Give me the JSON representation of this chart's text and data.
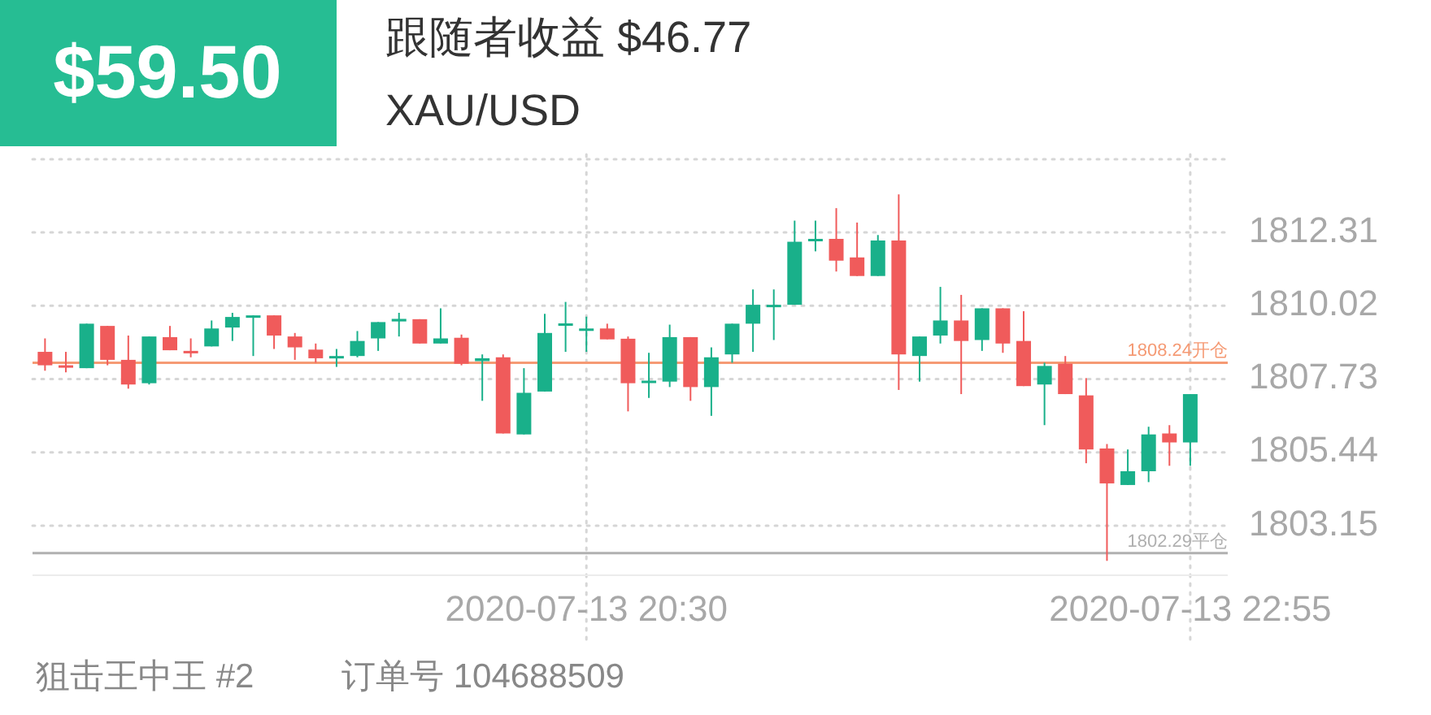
{
  "chart_data": {
    "type": "candlestick",
    "title": "XAU/USD",
    "subtitle": "跟随者收益 $46.77",
    "annotations": [
      "$59.50",
      "狙击王中王 #2",
      "订单号 104688509"
    ],
    "x": [
      "2020-07-13T18:20",
      "2020-07-13T18:25",
      "2020-07-13T18:30",
      "2020-07-13T18:35",
      "2020-07-13T18:40",
      "2020-07-13T18:45",
      "2020-07-13T18:50",
      "2020-07-13T18:55",
      "2020-07-13T19:00",
      "2020-07-13T19:05",
      "2020-07-13T19:10",
      "2020-07-13T19:15",
      "2020-07-13T19:20",
      "2020-07-13T19:25",
      "2020-07-13T19:30",
      "2020-07-13T19:35",
      "2020-07-13T19:40",
      "2020-07-13T19:45",
      "2020-07-13T19:50",
      "2020-07-13T19:55",
      "2020-07-13T20:00",
      "2020-07-13T20:05",
      "2020-07-13T20:10",
      "2020-07-13T20:15",
      "2020-07-13T20:20",
      "2020-07-13T20:25",
      "2020-07-13T20:30",
      "2020-07-13T20:35",
      "2020-07-13T20:40",
      "2020-07-13T20:45",
      "2020-07-13T20:50",
      "2020-07-13T20:55",
      "2020-07-13T21:00",
      "2020-07-13T21:05",
      "2020-07-13T21:10",
      "2020-07-13T21:15",
      "2020-07-13T21:20",
      "2020-07-13T21:25",
      "2020-07-13T21:30",
      "2020-07-13T21:35",
      "2020-07-13T21:40",
      "2020-07-13T21:45",
      "2020-07-13T21:50",
      "2020-07-13T21:55",
      "2020-07-13T22:00",
      "2020-07-13T22:05",
      "2020-07-13T22:10",
      "2020-07-13T22:15",
      "2020-07-13T22:20",
      "2020-07-13T22:25",
      "2020-07-13T22:30",
      "2020-07-13T22:35",
      "2020-07-13T22:40",
      "2020-07-13T22:45",
      "2020-07-13T22:50",
      "2020-07-13T22:55"
    ],
    "ohlc": [
      [
        1808.58,
        1809.0,
        1807.99,
        1808.16
      ],
      [
        1808.16,
        1808.58,
        1807.94,
        1808.09
      ],
      [
        1808.07,
        1809.46,
        1808.07,
        1809.46
      ],
      [
        1809.39,
        1809.39,
        1808.16,
        1808.33
      ],
      [
        1808.33,
        1809.09,
        1807.43,
        1807.56
      ],
      [
        1807.6,
        1809.06,
        1807.56,
        1809.06
      ],
      [
        1809.04,
        1809.39,
        1808.63,
        1808.63
      ],
      [
        1808.61,
        1809.0,
        1808.41,
        1808.55
      ],
      [
        1808.75,
        1809.56,
        1808.75,
        1809.31
      ],
      [
        1809.34,
        1809.8,
        1808.92,
        1809.67
      ],
      [
        1809.67,
        1809.72,
        1808.45,
        1809.72
      ],
      [
        1809.72,
        1809.72,
        1808.67,
        1809.09
      ],
      [
        1809.06,
        1809.17,
        1808.33,
        1808.72
      ],
      [
        1808.65,
        1808.84,
        1808.24,
        1808.38
      ],
      [
        1808.38,
        1808.67,
        1808.11,
        1808.45
      ],
      [
        1808.45,
        1809.23,
        1808.41,
        1808.92
      ],
      [
        1809.0,
        1809.51,
        1808.61,
        1809.51
      ],
      [
        1809.53,
        1809.8,
        1809.06,
        1809.61
      ],
      [
        1809.6,
        1809.6,
        1808.84,
        1808.84
      ],
      [
        1808.84,
        1809.94,
        1808.84,
        1809.0
      ],
      [
        1809.02,
        1809.12,
        1808.16,
        1808.21
      ],
      [
        1808.29,
        1808.5,
        1807.05,
        1808.38
      ],
      [
        1808.41,
        1808.5,
        1806.03,
        1806.03
      ],
      [
        1806.0,
        1808.07,
        1806.0,
        1807.3
      ],
      [
        1807.34,
        1809.77,
        1807.34,
        1809.17
      ],
      [
        1809.43,
        1810.14,
        1808.58,
        1809.47
      ],
      [
        1809.24,
        1809.68,
        1808.58,
        1809.31
      ],
      [
        1809.31,
        1809.46,
        1808.97,
        1808.97
      ],
      [
        1808.99,
        1809.06,
        1806.72,
        1807.6
      ],
      [
        1807.61,
        1808.55,
        1807.14,
        1807.68
      ],
      [
        1807.65,
        1809.43,
        1807.48,
        1809.04
      ],
      [
        1809.04,
        1809.04,
        1807.05,
        1807.48
      ],
      [
        1807.48,
        1808.72,
        1806.58,
        1808.41
      ],
      [
        1808.5,
        1809.46,
        1808.24,
        1809.46
      ],
      [
        1809.46,
        1810.53,
        1808.58,
        1810.05
      ],
      [
        1810.0,
        1810.53,
        1808.95,
        1810.05
      ],
      [
        1810.05,
        1812.68,
        1810.05,
        1812.02
      ],
      [
        1812.04,
        1812.68,
        1811.72,
        1812.11
      ],
      [
        1812.11,
        1813.07,
        1811.09,
        1811.43
      ],
      [
        1811.53,
        1812.62,
        1810.95,
        1810.95
      ],
      [
        1810.95,
        1812.23,
        1810.95,
        1812.06
      ],
      [
        1812.06,
        1813.5,
        1807.39,
        1808.5
      ],
      [
        1808.45,
        1809.06,
        1807.65,
        1809.06
      ],
      [
        1809.09,
        1810.61,
        1808.84,
        1809.56
      ],
      [
        1809.56,
        1810.36,
        1807.26,
        1808.92
      ],
      [
        1808.95,
        1809.94,
        1808.61,
        1809.94
      ],
      [
        1809.94,
        1809.94,
        1808.55,
        1808.84
      ],
      [
        1808.92,
        1809.85,
        1807.51,
        1807.51
      ],
      [
        1807.56,
        1808.24,
        1806.29,
        1808.14
      ],
      [
        1808.21,
        1808.45,
        1807.26,
        1807.26
      ],
      [
        1807.22,
        1807.76,
        1805.1,
        1805.53
      ],
      [
        1805.56,
        1805.7,
        1802.05,
        1804.47
      ],
      [
        1804.42,
        1805.53,
        1804.42,
        1804.85
      ],
      [
        1804.85,
        1806.24,
        1804.51,
        1806.0
      ],
      [
        1806.03,
        1806.29,
        1805.02,
        1805.75
      ],
      [
        1805.75,
        1807.26,
        1805.02,
        1807.26
      ]
    ],
    "colors": [
      "#f05b5b",
      "#f05b5b",
      "#19b08a",
      "#f05b5b",
      "#f05b5b",
      "#19b08a",
      "#f05b5b",
      "#f05b5b",
      "#19b08a",
      "#19b08a",
      "#19b08a",
      "#f05b5b",
      "#f05b5b",
      "#f05b5b",
      "#19b08a",
      "#19b08a",
      "#19b08a",
      "#19b08a",
      "#f05b5b",
      "#19b08a",
      "#f05b5b",
      "#19b08a",
      "#f05b5b",
      "#19b08a",
      "#19b08a",
      "#19b08a",
      "#19b08a",
      "#f05b5b",
      "#f05b5b",
      "#19b08a",
      "#19b08a",
      "#f05b5b",
      "#19b08a",
      "#19b08a",
      "#19b08a",
      "#19b08a",
      "#19b08a",
      "#19b08a",
      "#f05b5b",
      "#f05b5b",
      "#19b08a",
      "#f05b5b",
      "#19b08a",
      "#19b08a",
      "#f05b5b",
      "#19b08a",
      "#f05b5b",
      "#f05b5b",
      "#19b08a",
      "#f05b5b",
      "#f05b5b",
      "#f05b5b",
      "#19b08a",
      "#19b08a",
      "#f05b5b",
      "#19b08a"
    ],
    "xlim": [
      "2020-07-13T18:17",
      "2020-07-13T23:04"
    ],
    "xticks": [
      {
        "value": "2020-07-13T20:30",
        "label": "2020-07-13 20:30"
      },
      {
        "value": "2020-07-13T22:55",
        "label": "2020-07-13 22:55"
      }
    ],
    "ylim": [
      1801.6,
      1814.75
    ],
    "yticks": [
      1803.15,
      1805.44,
      1807.73,
      1810.02,
      1812.31,
      {
        "value": 1814.6,
        "label": null
      }
    ],
    "grid": true,
    "ref_lines": [
      {
        "axis": "y",
        "value": 1808.24,
        "label": "1808.24开仓",
        "color": "#f59a74"
      },
      {
        "axis": "y",
        "value": 1802.29,
        "label": "1802.29平仓",
        "color": "#b0b0b0"
      }
    ]
  }
}
